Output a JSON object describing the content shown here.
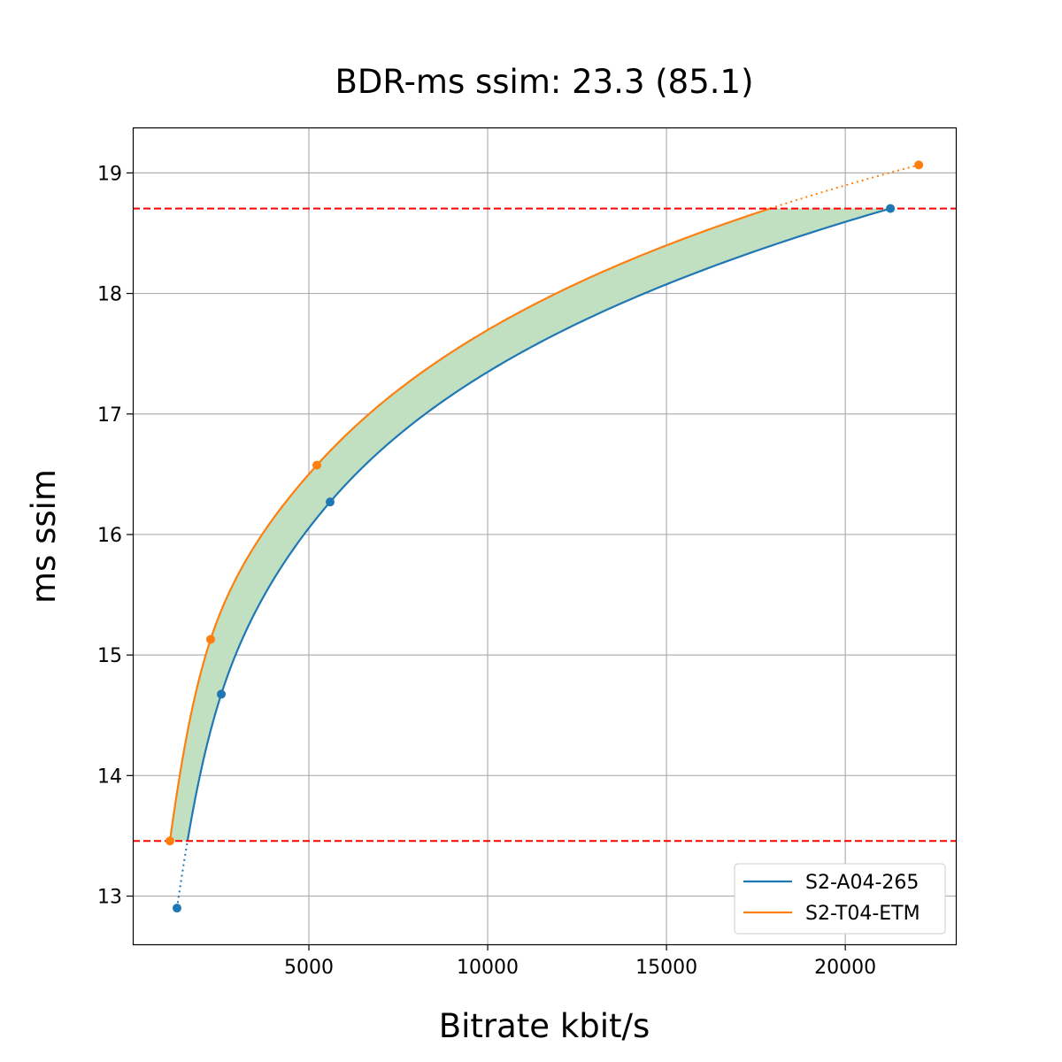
{
  "chart_data": {
    "type": "line",
    "title": "BDR-ms ssim: 23.3 (85.1)",
    "xlabel": "Bitrate kbit/s",
    "ylabel": "ms ssim",
    "xlim": [
      75,
      23090
    ],
    "ylim": [
      12.6,
      19.37
    ],
    "xticks": [
      5000,
      10000,
      15000,
      20000
    ],
    "xtick_labels": [
      "5000",
      "10000",
      "15000",
      "20000"
    ],
    "yticks": [
      13,
      14,
      15,
      16,
      17,
      18,
      19
    ],
    "ytick_labels": [
      "13",
      "14",
      "15",
      "16",
      "17",
      "18",
      "19"
    ],
    "grid": true,
    "legend_position": "bottom-right",
    "series": [
      {
        "name": "S2-A04-265",
        "color": "#1f77b4",
        "x": [
          1312,
          2550,
          5594,
          21262
        ],
        "y": [
          12.9,
          14.675,
          16.27,
          18.705
        ]
      },
      {
        "name": "S2-T04-ETM",
        "color": "#ff7f0e",
        "x": [
          1114,
          2252,
          5223,
          22054
        ],
        "y": [
          13.457,
          15.13,
          16.575,
          19.066
        ]
      }
    ],
    "reference_lines": {
      "orientation": "horizontal",
      "style": "dashed",
      "color": "#ff0000",
      "y": [
        18.705,
        13.457
      ]
    },
    "fill_between": {
      "color": "#c1e0c1",
      "y_range": [
        13.457,
        18.705
      ]
    }
  }
}
